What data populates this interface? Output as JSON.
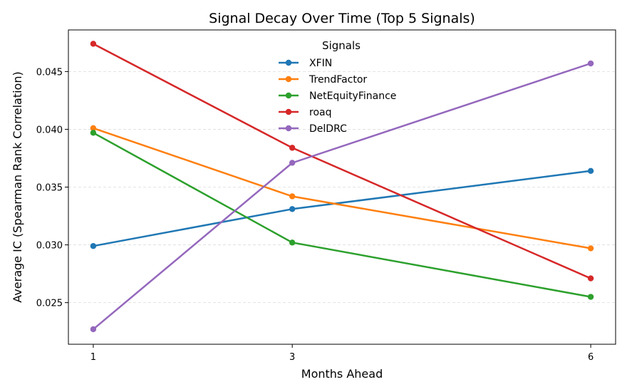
{
  "chart_data": {
    "type": "line",
    "title": "Signal Decay Over Time (Top 5 Signals)",
    "xlabel": "Months Ahead",
    "ylabel": "Average IC (Spearman Rank Correlation)",
    "x": [
      1,
      3,
      6
    ],
    "x_ticks": [
      "1",
      "3",
      "6"
    ],
    "xlim": [
      0.75,
      6.25
    ],
    "ylim": [
      0.0214,
      0.0486
    ],
    "y_ticks": [
      "0.025",
      "0.030",
      "0.035",
      "0.040",
      "0.045"
    ],
    "grid": "horizontal dashed",
    "legend": {
      "title": "Signals",
      "placement": "top-center"
    },
    "series": [
      {
        "name": "XFIN",
        "color": "#1f77b4",
        "values": [
          0.0299,
          0.0331,
          0.0364
        ]
      },
      {
        "name": "TrendFactor",
        "color": "#ff7f0e",
        "values": [
          0.0401,
          0.0342,
          0.0297
        ]
      },
      {
        "name": "NetEquityFinance",
        "color": "#2ca02c",
        "values": [
          0.0397,
          0.0302,
          0.0255
        ]
      },
      {
        "name": "roaq",
        "color": "#d62728",
        "values": [
          0.0474,
          0.0384,
          0.0271
        ]
      },
      {
        "name": "DelDRC",
        "color": "#9467bd",
        "values": [
          0.0227,
          0.0371,
          0.0457
        ]
      }
    ]
  }
}
